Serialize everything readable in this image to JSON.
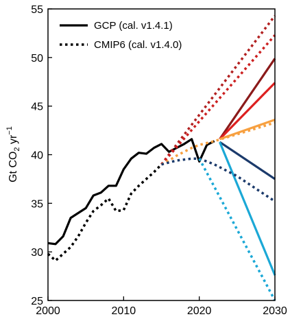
{
  "chart_data": {
    "type": "line",
    "title": "",
    "xlabel": "",
    "ylabel": {
      "prefix": "Gt CO",
      "sub": "2",
      "mid": " yr",
      "sup": "−1"
    },
    "xlim": [
      2000,
      2030
    ],
    "ylim": [
      25,
      55
    ],
    "x_ticks": [
      2000,
      2010,
      2020,
      2030
    ],
    "x_tick_labels": [
      "2000",
      "2010",
      "2020",
      "2030"
    ],
    "y_ticks": [
      25,
      30,
      35,
      40,
      45,
      50,
      55
    ],
    "y_tick_labels": [
      "25",
      "30",
      "35",
      "40",
      "45",
      "50",
      "55"
    ],
    "grid": false,
    "legend": {
      "placement": "top-left",
      "entries": [
        {
          "label": "GCP (cal. v1.4.1)",
          "style": "solid"
        },
        {
          "label": "CMIP6 (cal. v1.4.0)",
          "style": "dotted"
        }
      ]
    },
    "series": [
      {
        "style": "solid",
        "color": "#000000",
        "x": [
          2000,
          2001,
          2002,
          2003,
          2004,
          2005,
          2006,
          2007,
          2008,
          2009,
          2010,
          2011,
          2012,
          2013,
          2014,
          2015,
          2016,
          2017,
          2018,
          2019,
          2020,
          2021,
          2022
        ],
        "y": [
          30.9,
          30.8,
          31.6,
          33.5,
          34.0,
          34.5,
          35.8,
          36.1,
          36.8,
          36.8,
          38.5,
          39.6,
          40.2,
          40.1,
          40.7,
          41.1,
          40.3,
          40.7,
          41.1,
          41.6,
          39.3,
          41.0,
          41.4
        ]
      },
      {
        "style": "dotted",
        "color": "#000000",
        "x": [
          2000,
          2001,
          2002,
          2003,
          2004,
          2005,
          2006,
          2007,
          2008,
          2009,
          2010,
          2011,
          2012,
          2013,
          2014,
          2015
        ],
        "y": [
          29.8,
          29.1,
          29.8,
          30.5,
          31.6,
          33.0,
          34.2,
          34.8,
          35.5,
          34.2,
          34.3,
          36.0,
          36.8,
          37.5,
          38.2,
          39.0
        ]
      },
      {
        "style": "solid",
        "color": "#8b1a1a",
        "x": [
          2022.7,
          2030
        ],
        "y": [
          41.6,
          49.9
        ]
      },
      {
        "style": "solid",
        "color": "#dd2020",
        "x": [
          2022.7,
          2030
        ],
        "y": [
          41.6,
          47.4
        ]
      },
      {
        "style": "solid",
        "color": "#f7a040",
        "x": [
          2022.7,
          2030
        ],
        "y": [
          41.6,
          43.6
        ]
      },
      {
        "style": "solid",
        "color": "#1b3a6b",
        "x": [
          2022.7,
          2030
        ],
        "y": [
          41.3,
          37.5
        ]
      },
      {
        "style": "solid",
        "color": "#1ba8d6",
        "x": [
          2022.7,
          2030
        ],
        "y": [
          41.3,
          27.6
        ]
      },
      {
        "style": "dotted",
        "color": "#b22020",
        "x": [
          2015,
          2030
        ],
        "y": [
          39.0,
          54.3
        ]
      },
      {
        "style": "dotted",
        "color": "#cc2020",
        "x": [
          2015,
          2030
        ],
        "y": [
          39.0,
          52.3
        ]
      },
      {
        "style": "dotted",
        "color": "#f7a040",
        "x": [
          2015,
          2016,
          2017,
          2018,
          2019,
          2020,
          2021,
          2022,
          2025,
          2030
        ],
        "y": [
          39.0,
          39.4,
          39.9,
          40.3,
          40.7,
          41.0,
          41.2,
          41.4,
          42.1,
          43.3
        ]
      },
      {
        "style": "dotted",
        "color": "#1b3a6b",
        "x": [
          2015,
          2016,
          2017,
          2018,
          2019,
          2020,
          2021,
          2022,
          2025,
          2030
        ],
        "y": [
          39.0,
          39.2,
          39.4,
          39.5,
          39.6,
          39.6,
          39.3,
          39.0,
          37.8,
          35.2
        ]
      },
      {
        "style": "dotted",
        "color": "#1ba8d6",
        "x": [
          2020,
          2030
        ],
        "y": [
          39.6,
          25.0
        ]
      }
    ]
  }
}
